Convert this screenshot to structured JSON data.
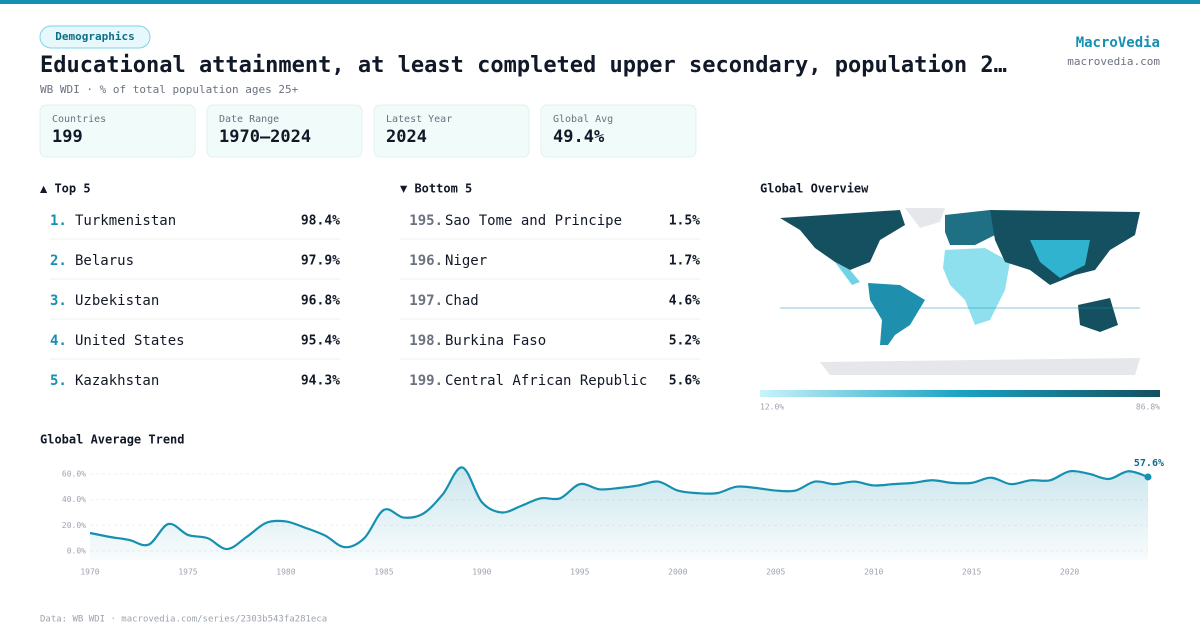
{
  "header": {
    "badge": "Demographics",
    "title": "Educational attainment, at least completed upper secondary, population 2…",
    "subtitle": "WB WDI · % of total population ages 25+",
    "brand": "MacroVedia",
    "brand_url": "macrovedia.com"
  },
  "stats": [
    {
      "label": "Countries",
      "value": "199"
    },
    {
      "label": "Date Range",
      "value": "1970–2024"
    },
    {
      "label": "Latest Year",
      "value": "2024"
    },
    {
      "label": "Global Avg",
      "value": "49.4%"
    }
  ],
  "top": {
    "heading": "▲ Top 5",
    "items": [
      {
        "rank": "1.",
        "name": "Turkmenistan",
        "value": "98.4%"
      },
      {
        "rank": "2.",
        "name": "Belarus",
        "value": "97.9%"
      },
      {
        "rank": "3.",
        "name": "Uzbekistan",
        "value": "96.8%"
      },
      {
        "rank": "4.",
        "name": "United States",
        "value": "95.4%"
      },
      {
        "rank": "5.",
        "name": "Kazakhstan",
        "value": "94.3%"
      }
    ]
  },
  "bottom": {
    "heading": "▼ Bottom 5",
    "items": [
      {
        "rank": "195.",
        "name": "Sao Tome and Principe",
        "value": "1.5%"
      },
      {
        "rank": "196.",
        "name": "Niger",
        "value": "1.7%"
      },
      {
        "rank": "197.",
        "name": "Chad",
        "value": "4.6%"
      },
      {
        "rank": "198.",
        "name": "Burkina Faso",
        "value": "5.2%"
      },
      {
        "rank": "199.",
        "name": "Central African Republic",
        "value": "5.6%"
      }
    ]
  },
  "map": {
    "title": "Global Overview",
    "legend_min": "12.0%",
    "legend_max": "86.8%"
  },
  "chart_data": {
    "type": "line",
    "title": "Global Average Trend",
    "color": "#1590b0",
    "x": [
      1970,
      1971,
      1972,
      1973,
      1974,
      1975,
      1976,
      1977,
      1978,
      1979,
      1980,
      1981,
      1982,
      1983,
      1984,
      1985,
      1986,
      1987,
      1988,
      1989,
      1990,
      1991,
      1992,
      1993,
      1994,
      1995,
      1996,
      1997,
      1998,
      1999,
      2000,
      2001,
      2002,
      2003,
      2004,
      2005,
      2006,
      2007,
      2008,
      2009,
      2010,
      2011,
      2012,
      2013,
      2014,
      2015,
      2016,
      2017,
      2018,
      2019,
      2020,
      2021,
      2022,
      2023,
      2024
    ],
    "values": [
      14,
      11,
      8.6,
      5,
      21,
      12.5,
      10,
      1.5,
      11,
      22,
      23,
      18,
      12,
      3,
      10,
      32,
      26,
      29,
      44,
      65,
      38,
      30,
      35,
      41,
      41,
      52,
      48,
      49,
      51,
      54,
      47,
      45,
      45,
      50,
      49,
      47,
      47,
      54,
      52,
      54,
      51,
      52,
      53,
      55,
      53,
      53,
      57,
      52,
      55,
      55,
      62,
      60,
      56,
      62,
      57.6
    ],
    "value_labels": [
      null,
      null,
      null,
      null,
      null,
      null,
      null,
      null,
      null,
      null,
      null,
      null,
      null,
      null,
      null,
      null,
      null,
      null,
      null,
      null,
      null,
      null,
      null,
      null,
      null,
      null,
      null,
      null,
      null,
      null,
      null,
      null,
      null,
      null,
      null,
      null,
      null,
      null,
      null,
      null,
      null,
      null,
      null,
      null,
      null,
      null,
      null,
      null,
      null,
      null,
      null,
      null,
      null,
      null,
      "57.6%"
    ],
    "xlim": [
      1970,
      2024
    ],
    "xticks": [
      1970,
      1975,
      1980,
      1985,
      1990,
      1995,
      2000,
      2005,
      2010,
      2015,
      2020
    ],
    "ylim": [
      -7,
      70
    ],
    "yticks": [
      {
        "value": 0,
        "label": "0.0%"
      },
      {
        "value": 20,
        "label": "20.0%"
      },
      {
        "value": 40,
        "label": "40.0%"
      },
      {
        "value": 60,
        "label": "60.0%"
      }
    ],
    "grid": true
  },
  "footer": "Data: WB WDI · macrovedia.com/series/2303b543fa281eca"
}
